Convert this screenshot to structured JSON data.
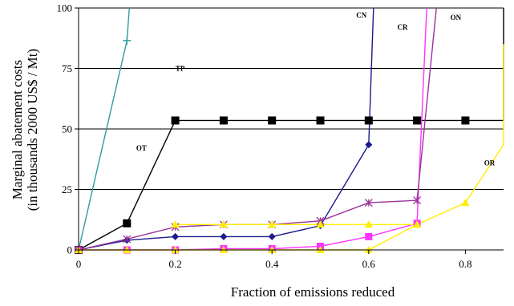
{
  "chart_data": {
    "type": "line",
    "title": "",
    "xlabel": "Fraction of emissions reduced",
    "ylabel_line1": "Marginal abatement costs",
    "ylabel_line2": "(in thousands 2000 US$ / Mt)",
    "xlim": [
      0,
      1
    ],
    "ylim": [
      0,
      100
    ],
    "xticks": [
      0,
      0.2,
      0.4,
      0.6,
      0.8
    ],
    "xtick_labels": [
      "0",
      "0.2",
      "0.4",
      "0.6",
      "0.8"
    ],
    "yticks": [
      0,
      25,
      50,
      75,
      100
    ],
    "ytick_labels": [
      "0",
      "25",
      "50",
      "75",
      "100"
    ],
    "grid": "horizontal",
    "series": [
      {
        "name": "TP",
        "color": "#2e9c9c",
        "marker": "plus",
        "points": [
          [
            0,
            0
          ],
          [
            0.1,
            86.5
          ],
          [
            0.105,
            100
          ]
        ]
      },
      {
        "name": "OT",
        "color": "#000000",
        "marker": "square",
        "points": [
          [
            0,
            0
          ],
          [
            0.1,
            11
          ],
          [
            0.2,
            53.5
          ],
          [
            0.3,
            53.5
          ],
          [
            0.4,
            53.5
          ],
          [
            0.5,
            53.5
          ],
          [
            0.6,
            53.5
          ],
          [
            0.7,
            53.5
          ],
          [
            0.8,
            53.5
          ],
          [
            0.9,
            53.5
          ],
          [
            0.9,
            100
          ]
        ]
      },
      {
        "name": "CN",
        "color": "#1a1a8c",
        "marker": "diamond",
        "points": [
          [
            0,
            0
          ],
          [
            0.1,
            4
          ],
          [
            0.2,
            5.5
          ],
          [
            0.3,
            5.5
          ],
          [
            0.4,
            5.5
          ],
          [
            0.5,
            10
          ],
          [
            0.6,
            43.5
          ],
          [
            0.61,
            100
          ]
        ]
      },
      {
        "name": "CR",
        "color": "#ff33ff",
        "marker": "square",
        "points": [
          [
            0,
            0
          ],
          [
            0.1,
            0
          ],
          [
            0.2,
            0
          ],
          [
            0.3,
            0.5
          ],
          [
            0.4,
            0.5
          ],
          [
            0.5,
            1.5
          ],
          [
            0.6,
            5.5
          ],
          [
            0.7,
            11
          ],
          [
            0.72,
            100
          ]
        ]
      },
      {
        "name": "ON",
        "color": "#993399",
        "marker": "asterisk",
        "points": [
          [
            0,
            0
          ],
          [
            0.1,
            4.5
          ],
          [
            0.2,
            9.5
          ],
          [
            0.3,
            10.5
          ],
          [
            0.4,
            10.5
          ],
          [
            0.5,
            12
          ],
          [
            0.6,
            19.5
          ],
          [
            0.7,
            20.5
          ],
          [
            0.74,
            100
          ]
        ]
      },
      {
        "name": "",
        "color": "#ffee00",
        "marker": "triangle",
        "points": [
          [
            0.2,
            10.5
          ],
          [
            0.3,
            10.5
          ],
          [
            0.4,
            10.5
          ],
          [
            0.5,
            10.5
          ],
          [
            0.6,
            10.5
          ],
          [
            0.7,
            10.5
          ]
        ]
      },
      {
        "name": "OR",
        "color": "#ffee00",
        "marker": "triangle",
        "points": [
          [
            0,
            0
          ],
          [
            0.1,
            0
          ],
          [
            0.2,
            0
          ],
          [
            0.3,
            0
          ],
          [
            0.4,
            0
          ],
          [
            0.5,
            0
          ],
          [
            0.6,
            0
          ],
          [
            0.7,
            10.5
          ],
          [
            0.8,
            19.5
          ],
          [
            0.9,
            43.5
          ],
          [
            1.0,
            85
          ]
        ]
      }
    ]
  }
}
